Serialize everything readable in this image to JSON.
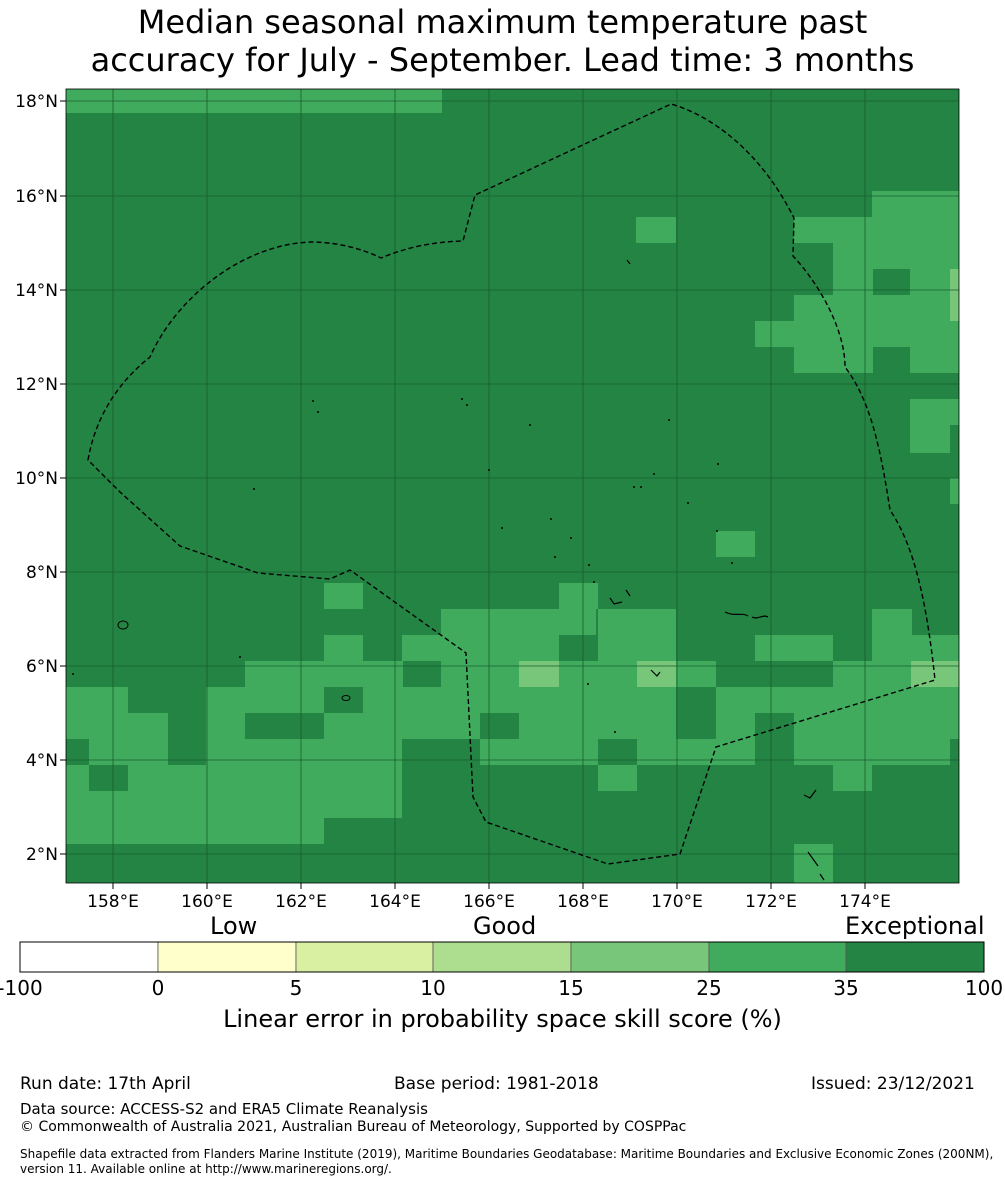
{
  "title": {
    "line1": "Median seasonal maximum temperature past",
    "line2": "accuracy for July - September. Lead time: 3 months"
  },
  "map": {
    "lon_range": [
      157.0,
      176.0
    ],
    "lat_range": [
      1.35,
      18.3
    ],
    "x_ticks": [
      "158°E",
      "160°E",
      "162°E",
      "164°E",
      "166°E",
      "168°E",
      "170°E",
      "172°E",
      "174°E"
    ],
    "y_ticks": [
      "18°N",
      "16°N",
      "14°N",
      "12°N",
      "10°N",
      "8°N",
      "6°N",
      "4°N",
      "2°N"
    ],
    "colors": {
      "exceptional": "#238443",
      "good_high": "#41ab5d",
      "good_mid": "#78c679",
      "eez_line": "#000000"
    }
  },
  "colorbar": {
    "words": [
      "Low",
      "Good",
      "Exceptional"
    ],
    "ticks": [
      "-100",
      "0",
      "5",
      "10",
      "15",
      "25",
      "35",
      "100"
    ],
    "colors": [
      "#ffffff",
      "#ffffcc",
      "#d9f0a3",
      "#addd8e",
      "#78c679",
      "#41ab5d",
      "#238443"
    ],
    "label": "Linear error in probability space skill score (%)"
  },
  "footer": {
    "run_date": "Run date: 17th April",
    "base_period": "Base period: 1981-2018",
    "issued": "Issued: 23/12/2021",
    "data_source": "Data source: ACCESS-S2 and ERA5 Climate Reanalysis",
    "copyright": "© Commonwealth of Australia 2021, Australian Bureau of Meteorology, Supported by COSPPac",
    "shapefile_line1": "Shapefile data extracted from Flanders Marine Institute (2019), Maritime Boundaries Geodatabase: Maritime Boundaries and Exclusive Economic Zones (200NM),",
    "shapefile_line2": "version 11. Available online at http://www.marineregions.org/."
  }
}
